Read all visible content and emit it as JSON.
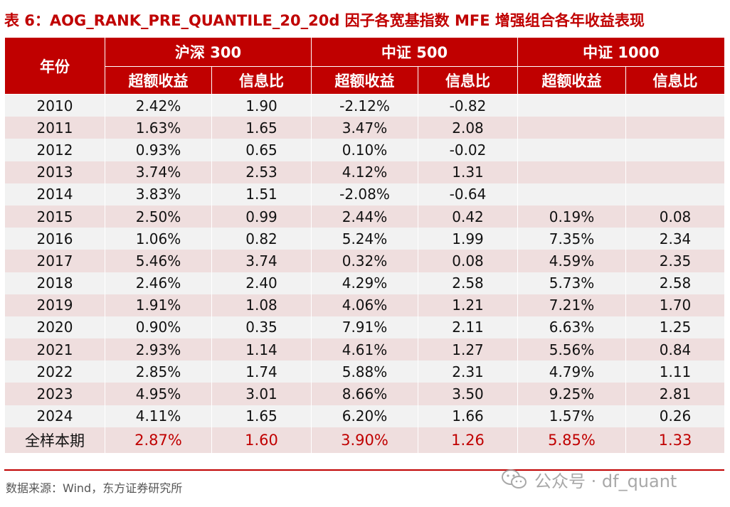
{
  "title": "表 6：AOG_RANK_PRE_QUANTILE_20_20d 因子各宽基指数 MFE 增强组合各年收益表现",
  "header": {
    "year_label": "年份",
    "groups": [
      "沪深 300",
      "中证 500",
      "中证 1000"
    ],
    "sub_excess": "超额收益",
    "sub_ir": "信息比"
  },
  "rows": [
    [
      "2010",
      "2.42%",
      "1.90",
      "-2.12%",
      "-0.82",
      "",
      ""
    ],
    [
      "2011",
      "1.63%",
      "1.65",
      "3.47%",
      "2.08",
      "",
      ""
    ],
    [
      "2012",
      "0.93%",
      "0.65",
      "0.10%",
      "-0.02",
      "",
      ""
    ],
    [
      "2013",
      "3.74%",
      "2.53",
      "4.12%",
      "1.31",
      "",
      ""
    ],
    [
      "2014",
      "3.83%",
      "1.51",
      "-2.08%",
      "-0.64",
      "",
      ""
    ],
    [
      "2015",
      "2.50%",
      "0.99",
      "2.44%",
      "0.42",
      "0.19%",
      "0.08"
    ],
    [
      "2016",
      "1.06%",
      "0.82",
      "5.24%",
      "1.99",
      "7.35%",
      "2.34"
    ],
    [
      "2017",
      "5.46%",
      "3.74",
      "0.32%",
      "0.08",
      "4.59%",
      "2.35"
    ],
    [
      "2018",
      "2.46%",
      "2.40",
      "4.29%",
      "2.58",
      "5.73%",
      "2.58"
    ],
    [
      "2019",
      "1.91%",
      "1.08",
      "4.06%",
      "1.21",
      "7.21%",
      "1.70"
    ],
    [
      "2020",
      "0.90%",
      "0.35",
      "7.91%",
      "2.11",
      "6.63%",
      "1.25"
    ],
    [
      "2021",
      "2.93%",
      "1.14",
      "4.61%",
      "1.27",
      "5.56%",
      "0.84"
    ],
    [
      "2022",
      "2.85%",
      "1.74",
      "5.88%",
      "2.31",
      "4.79%",
      "1.11"
    ],
    [
      "2023",
      "4.95%",
      "3.01",
      "8.66%",
      "3.50",
      "9.25%",
      "2.81"
    ],
    [
      "2024",
      "4.11%",
      "1.65",
      "6.20%",
      "1.66",
      "1.57%",
      "0.26"
    ]
  ],
  "summary": [
    "全样本期",
    "2.87%",
    "1.60",
    "3.90%",
    "1.26",
    "5.85%",
    "1.33"
  ],
  "source": "数据来源：Wind，东方证券研究所",
  "watermark": {
    "text": "公众号 · df_quant",
    "icon": "wechat-icon"
  },
  "colors": {
    "header_bg": "#c00000",
    "title": "#c00000",
    "row_odd": "#f2f2f2",
    "row_even": "#efdede",
    "summary_value": "#c00000"
  }
}
